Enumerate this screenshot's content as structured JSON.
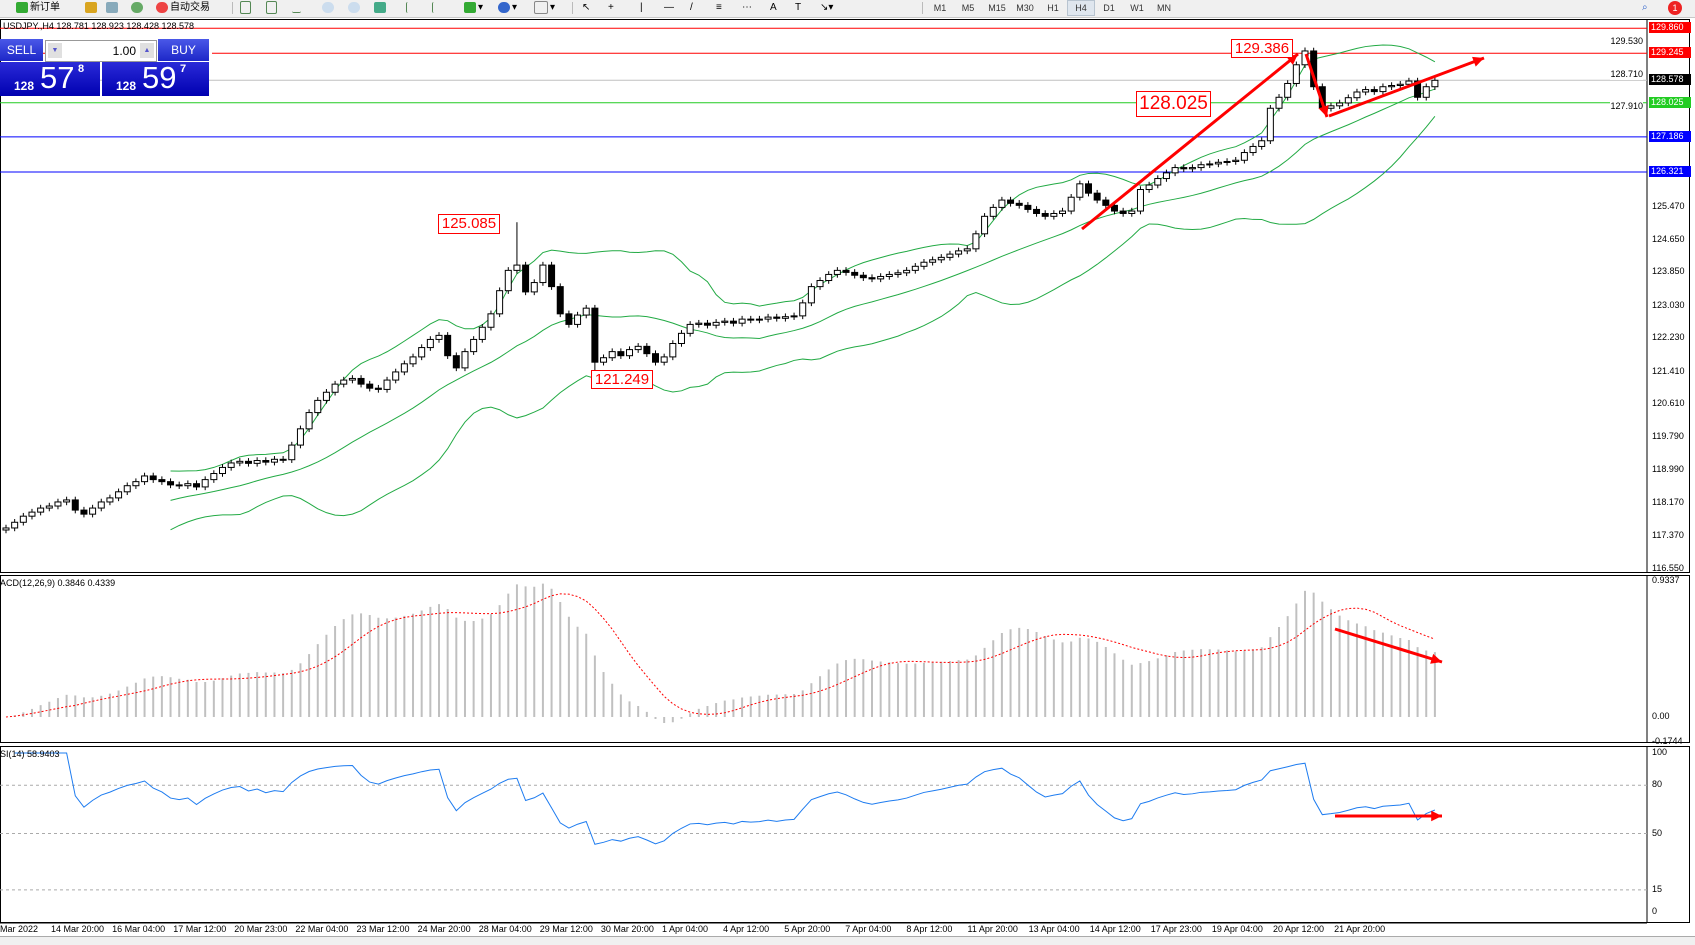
{
  "toolbar": {
    "new_order": "新订单",
    "auto_trading": "自动交易",
    "timeframes": [
      "M1",
      "M5",
      "M15",
      "M30",
      "H1",
      "H4",
      "D1",
      "W1",
      "MN"
    ],
    "active_timeframe": "H4",
    "notification_count": "1"
  },
  "chart": {
    "title": "USDJPY.,H4  128.781 128.923 128.428 128.578"
  },
  "trade_panel": {
    "sell_label": "SELL",
    "buy_label": "BUY",
    "lot": "1.00",
    "sell_price": {
      "prefix": "128",
      "big": "57",
      "sup": "8"
    },
    "buy_price": {
      "prefix": "128",
      "big": "59",
      "sup": "7"
    }
  },
  "price_axis": {
    "ticks": [
      "129.530",
      "128.710",
      "127.910",
      "125.470",
      "124.650",
      "123.850",
      "123.030",
      "122.230",
      "121.410",
      "120.610",
      "119.790",
      "118.990",
      "118.170",
      "117.370",
      "116.550"
    ],
    "tags": [
      {
        "value": "129.860",
        "color": "#ff0000"
      },
      {
        "value": "129.245",
        "color": "#ff0000"
      },
      {
        "value": "128.578",
        "color": "#000000"
      },
      {
        "value": "128.025",
        "color": "#22cc22"
      },
      {
        "value": "127.186",
        "color": "#0000ff"
      },
      {
        "value": "126.321",
        "color": "#0000ff"
      }
    ]
  },
  "annotations": [
    "125.085",
    "121.249",
    "128.025",
    "129.386"
  ],
  "macd": {
    "label": "ACD(12,26,9) 0.3846 0.4339",
    "ticks": [
      "0.9337",
      "0.00",
      "-0.1744"
    ]
  },
  "rsi": {
    "label": "SI(14) 58.9403",
    "ticks": [
      "100",
      "80",
      "50",
      "15",
      "0"
    ]
  },
  "time_axis": [
    "Mar 2022",
    "14 Mar 20:00",
    "16 Mar 04:00",
    "17 Mar 12:00",
    "20 Mar 23:00",
    "22 Mar 04:00",
    "23 Mar 12:00",
    "24 Mar 20:00",
    "28 Mar 04:00",
    "29 Mar 12:00",
    "30 Mar 20:00",
    "1 Apr 04:00",
    "4 Apr 12:00",
    "5 Apr 20:00",
    "7 Apr 04:00",
    "8 Apr 12:00",
    "11 Apr 20:00",
    "13 Apr 04:00",
    "14 Apr 12:00",
    "17 Apr 23:00",
    "19 Apr 04:00",
    "20 Apr 12:00",
    "21 Apr 20:00"
  ],
  "chart_data": {
    "type": "candlestick",
    "symbol": "USDJPY",
    "timeframe": "H4",
    "ylim": [
      116.55,
      129.86
    ],
    "closes": [
      117.56,
      117.7,
      117.85,
      117.95,
      118.05,
      118.1,
      118.2,
      118.25,
      118.0,
      117.9,
      118.05,
      118.2,
      118.3,
      118.45,
      118.6,
      118.7,
      118.84,
      118.75,
      118.7,
      118.62,
      118.6,
      118.65,
      118.57,
      118.75,
      118.9,
      119.05,
      119.16,
      119.2,
      119.15,
      119.22,
      119.18,
      119.25,
      119.24,
      119.6,
      120.0,
      120.4,
      120.7,
      120.9,
      121.1,
      121.2,
      121.24,
      121.1,
      121.0,
      120.97,
      121.2,
      121.4,
      121.6,
      121.77,
      122.0,
      122.2,
      122.3,
      121.8,
      121.5,
      121.9,
      122.2,
      122.5,
      122.83,
      123.4,
      123.9,
      124.03,
      123.37,
      123.6,
      124.03,
      123.5,
      122.83,
      122.57,
      122.8,
      122.97,
      121.64,
      121.75,
      121.9,
      121.8,
      121.95,
      122.03,
      121.85,
      121.64,
      121.77,
      122.1,
      122.35,
      122.57,
      122.6,
      122.55,
      122.62,
      122.65,
      122.6,
      122.7,
      122.68,
      122.7,
      122.75,
      122.72,
      122.76,
      122.78,
      123.1,
      123.5,
      123.65,
      123.8,
      123.9,
      123.85,
      123.78,
      123.72,
      123.69,
      123.75,
      123.8,
      123.84,
      123.9,
      124.0,
      124.1,
      124.16,
      124.22,
      124.3,
      124.38,
      124.43,
      124.8,
      125.23,
      125.45,
      125.63,
      125.55,
      125.5,
      125.4,
      125.3,
      125.23,
      125.3,
      125.36,
      125.7,
      126.03,
      125.8,
      125.63,
      125.5,
      125.36,
      125.3,
      125.36,
      125.89,
      126.0,
      126.16,
      126.3,
      126.43,
      126.4,
      126.43,
      126.5,
      126.52,
      126.56,
      126.58,
      126.61,
      126.8,
      126.95,
      127.09,
      127.89,
      128.16,
      128.5,
      128.96,
      129.3,
      128.42,
      127.89,
      127.95,
      128.02,
      128.15,
      128.29,
      128.35,
      128.3,
      128.42,
      128.45,
      128.48,
      128.56,
      128.16,
      128.42,
      128.578
    ],
    "marked_extremes": [
      {
        "label": "125.085",
        "value": 125.085
      },
      {
        "label": "121.249",
        "value": 121.249
      },
      {
        "label": "129.386",
        "value": 129.386
      }
    ],
    "horizontal_levels": [
      129.86,
      129.245,
      128.578,
      128.025,
      127.186,
      126.321
    ],
    "indicators": [
      "Bollinger Bands",
      "MACD(12,26,9)",
      "RSI(14)"
    ],
    "colors": {
      "bands": "#22aa44",
      "macd_hist": "#c0c0c0",
      "macd_signal": "#ff0000",
      "rsi": "#1e7cf0",
      "arrows": "#ff0000"
    }
  }
}
